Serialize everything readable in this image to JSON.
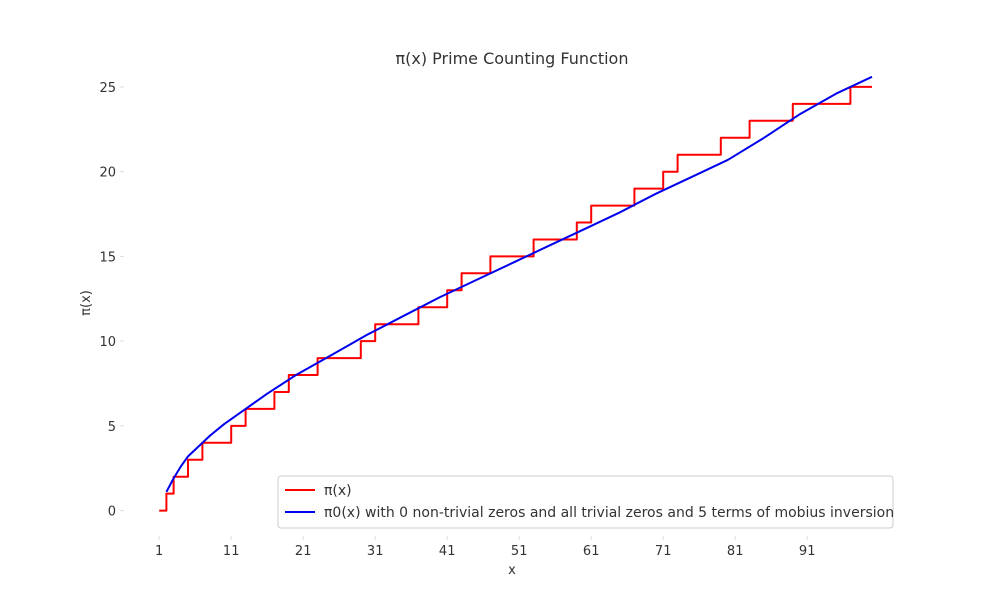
{
  "chart_data": {
    "type": "line",
    "title": "π(x) Prime Counting Function",
    "xlabel": "x",
    "ylabel": "π(x)",
    "xlim": [
      0,
      100
    ],
    "ylim": [
      -1.5,
      26
    ],
    "x_ticks": [
      1,
      11,
      21,
      31,
      41,
      51,
      61,
      71,
      81,
      91
    ],
    "y_ticks": [
      0,
      5,
      10,
      15,
      20,
      25
    ],
    "grid": false,
    "legend_position": "lower-right",
    "series": [
      {
        "name": "π(x)",
        "color": "#ff0000",
        "step": true,
        "x": [
          1,
          2,
          3,
          5,
          7,
          11,
          13,
          17,
          19,
          23,
          29,
          31,
          37,
          41,
          43,
          47,
          53,
          59,
          61,
          67,
          71,
          73,
          79,
          83,
          89,
          97,
          100
        ],
        "y": [
          0,
          1,
          2,
          3,
          4,
          5,
          6,
          7,
          8,
          9,
          10,
          11,
          12,
          13,
          14,
          15,
          16,
          17,
          18,
          19,
          20,
          21,
          22,
          23,
          24,
          25,
          25
        ]
      },
      {
        "name": "π0(x) with 0 non-trivial zeros and all trivial zeros and 5 terms of mobius inversion",
        "color": "#0000ee",
        "step": false,
        "x": [
          2,
          3,
          4,
          5,
          6,
          8,
          10,
          13,
          16,
          20,
          25,
          30,
          35,
          40,
          45,
          50,
          55,
          60,
          65,
          70,
          75,
          80,
          85,
          90,
          95,
          100
        ],
        "y": [
          1.1,
          1.9,
          2.6,
          3.2,
          3.6,
          4.4,
          5.1,
          6.0,
          6.9,
          8.0,
          9.2,
          10.4,
          11.5,
          12.6,
          13.6,
          14.6,
          15.6,
          16.6,
          17.6,
          18.7,
          19.7,
          20.7,
          22.0,
          23.4,
          24.6,
          25.6
        ]
      }
    ]
  },
  "legend": {
    "item1_label": "π(x)",
    "item2_label": "π0(x) with 0 non-trivial zeros and all trivial zeros and 5 terms of mobius inversion"
  }
}
